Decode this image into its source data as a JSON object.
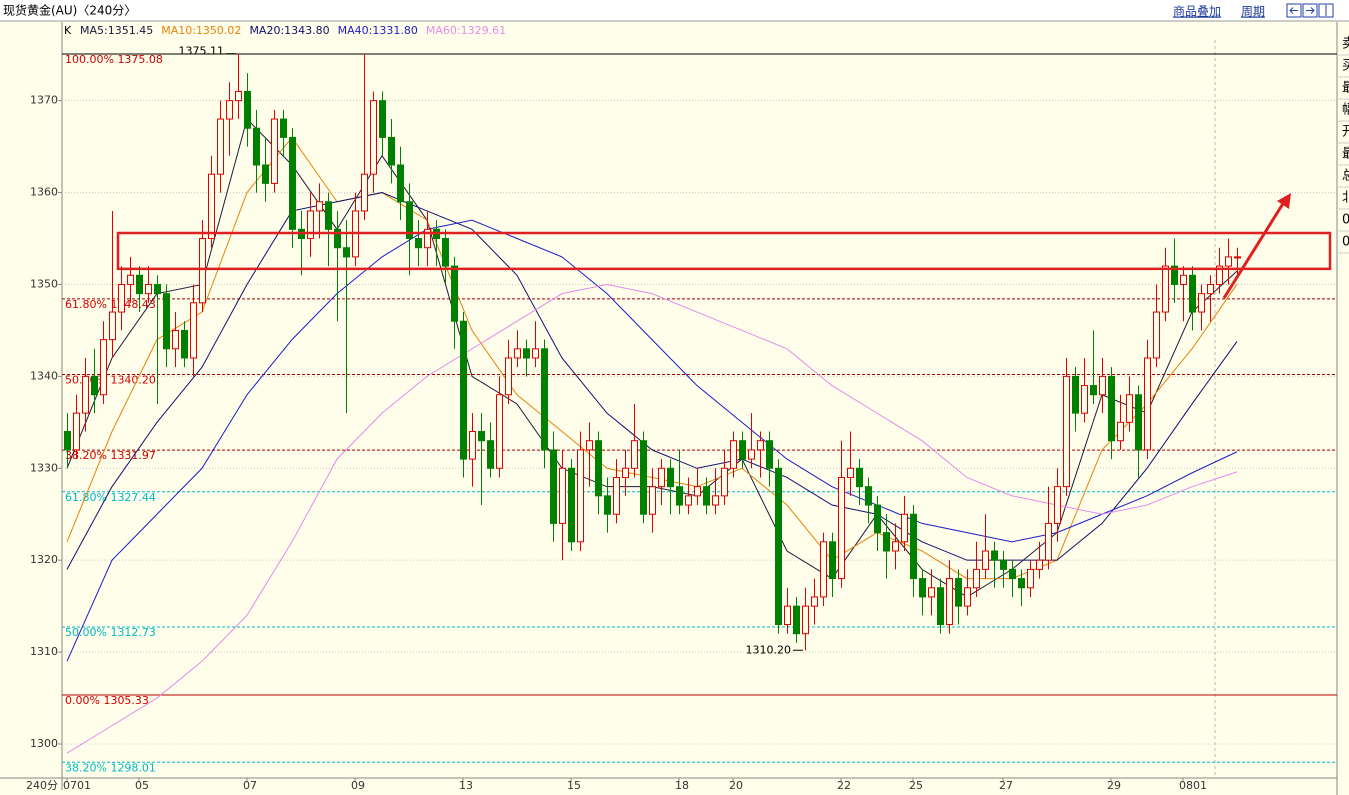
{
  "header": {
    "title": "现货黄金(AU)〈240分〉",
    "overlay_button": "商品叠加",
    "period_button": "周期"
  },
  "side_panel": [
    "卖",
    "买",
    "最",
    "幅",
    "开",
    "最",
    "总",
    "北",
    "0",
    "0"
  ],
  "chart_data": {
    "type": "candlestick",
    "indicator": "K",
    "period_label": "240分",
    "ylim": [
      1296.3,
      1376.6
    ],
    "yticks": [
      1300,
      1310,
      1320,
      1330,
      1340,
      1350,
      1360,
      1370
    ],
    "grid": true,
    "up_color": "#e00000",
    "down_color": "#008000",
    "categories": [
      "0701",
      null,
      null,
      null,
      null,
      null,
      null,
      null,
      "05",
      null,
      null,
      null,
      null,
      null,
      null,
      null,
      null,
      null,
      null,
      null,
      "07",
      null,
      null,
      null,
      null,
      null,
      null,
      null,
      null,
      null,
      null,
      null,
      "09",
      null,
      null,
      null,
      null,
      null,
      null,
      null,
      null,
      null,
      null,
      null,
      "13",
      null,
      null,
      null,
      null,
      null,
      null,
      null,
      null,
      null,
      null,
      null,
      "15",
      null,
      null,
      null,
      null,
      null,
      null,
      null,
      null,
      null,
      null,
      null,
      "18",
      null,
      null,
      null,
      null,
      null,
      "20",
      null,
      null,
      null,
      null,
      null,
      null,
      null,
      null,
      null,
      null,
      null,
      "22",
      null,
      null,
      null,
      null,
      null,
      null,
      null,
      "25",
      null,
      null,
      null,
      null,
      null,
      null,
      null,
      null,
      null,
      "27",
      null,
      null,
      null,
      null,
      null,
      null,
      null,
      null,
      null,
      null,
      null,
      "29",
      null,
      null,
      null,
      null,
      null,
      null,
      null,
      "0801",
      null,
      null,
      null,
      null,
      null,
      null
    ],
    "ohlc": [
      [
        1334,
        1336,
        1330,
        1332
      ],
      [
        1332,
        1338,
        1331,
        1336
      ],
      [
        1336,
        1342,
        1334,
        1340
      ],
      [
        1340,
        1343,
        1336,
        1338
      ],
      [
        1338,
        1346,
        1337,
        1344
      ],
      [
        1344,
        1358,
        1342,
        1347
      ],
      [
        1347,
        1352,
        1345,
        1350
      ],
      [
        1350,
        1353,
        1348,
        1351
      ],
      [
        1351,
        1352,
        1347,
        1349
      ],
      [
        1349,
        1352,
        1348,
        1350
      ],
      [
        1350,
        1351,
        1337,
        1349
      ],
      [
        1349,
        1350,
        1341,
        1343
      ],
      [
        1343,
        1347,
        1341,
        1345
      ],
      [
        1345,
        1346,
        1341,
        1342
      ],
      [
        1342,
        1350,
        1340,
        1348
      ],
      [
        1348,
        1357,
        1347,
        1355
      ],
      [
        1355,
        1364,
        1354,
        1362
      ],
      [
        1362,
        1370,
        1360,
        1368
      ],
      [
        1368,
        1372,
        1364,
        1370
      ],
      [
        1370,
        1375.11,
        1368,
        1371
      ],
      [
        1371,
        1373,
        1365,
        1367
      ],
      [
        1367,
        1369,
        1360,
        1363
      ],
      [
        1363,
        1366,
        1359,
        1361
      ],
      [
        1361,
        1369,
        1360,
        1368
      ],
      [
        1368,
        1369,
        1364,
        1366
      ],
      [
        1366,
        1367,
        1354,
        1356
      ],
      [
        1356,
        1358,
        1351,
        1355
      ],
      [
        1355,
        1360,
        1353,
        1358
      ],
      [
        1358,
        1361,
        1355,
        1359
      ],
      [
        1359,
        1360,
        1352,
        1356
      ],
      [
        1356,
        1358,
        1346,
        1354
      ],
      [
        1354,
        1357,
        1336,
        1353
      ],
      [
        1353,
        1360,
        1352,
        1358
      ],
      [
        1358,
        1375,
        1357,
        1362
      ],
      [
        1362,
        1371,
        1360,
        1370
      ],
      [
        1370,
        1371,
        1364,
        1366
      ],
      [
        1366,
        1368,
        1361,
        1363
      ],
      [
        1363,
        1365,
        1357,
        1359
      ],
      [
        1359,
        1361,
        1351,
        1355
      ],
      [
        1355,
        1357,
        1352,
        1354
      ],
      [
        1354,
        1358,
        1352,
        1356
      ],
      [
        1356,
        1357,
        1352,
        1355
      ],
      [
        1355,
        1356,
        1350,
        1352
      ],
      [
        1352,
        1353,
        1343,
        1346
      ],
      [
        1346,
        1347,
        1329,
        1331
      ],
      [
        1331,
        1336,
        1328,
        1334
      ],
      [
        1334,
        1336,
        1326,
        1333
      ],
      [
        1333,
        1335,
        1329,
        1330
      ],
      [
        1330,
        1340,
        1329,
        1338
      ],
      [
        1338,
        1344,
        1337,
        1342
      ],
      [
        1342,
        1345,
        1341,
        1343
      ],
      [
        1343,
        1344,
        1340,
        1342
      ],
      [
        1342,
        1346,
        1341,
        1343
      ],
      [
        1343,
        1344,
        1330,
        1332
      ],
      [
        1332,
        1334,
        1322,
        1324
      ],
      [
        1324,
        1332,
        1320,
        1330
      ],
      [
        1330,
        1331,
        1321,
        1322
      ],
      [
        1322,
        1334,
        1321,
        1332
      ],
      [
        1332,
        1335,
        1328,
        1333
      ],
      [
        1333,
        1334,
        1325,
        1327
      ],
      [
        1327,
        1329,
        1323,
        1325
      ],
      [
        1325,
        1331,
        1324,
        1329
      ],
      [
        1329,
        1332,
        1327,
        1330
      ],
      [
        1330,
        1337,
        1329,
        1333
      ],
      [
        1333,
        1334,
        1324,
        1325
      ],
      [
        1325,
        1330,
        1323,
        1328
      ],
      [
        1328,
        1331,
        1326,
        1330
      ],
      [
        1330,
        1331,
        1325,
        1328
      ],
      [
        1328,
        1332,
        1325,
        1326
      ],
      [
        1326,
        1329,
        1325,
        1327
      ],
      [
        1327,
        1330,
        1326,
        1328
      ],
      [
        1328,
        1329,
        1325,
        1326
      ],
      [
        1326,
        1330,
        1325,
        1327
      ],
      [
        1327,
        1332,
        1326,
        1330
      ],
      [
        1330,
        1334,
        1329,
        1333
      ],
      [
        1333,
        1334,
        1330,
        1331
      ],
      [
        1331,
        1336,
        1330,
        1332
      ],
      [
        1332,
        1334,
        1329,
        1333
      ],
      [
        1333,
        1334,
        1328,
        1330
      ],
      [
        1330,
        1331,
        1312,
        1313
      ],
      [
        1313,
        1317,
        1312,
        1315
      ],
      [
        1315,
        1316,
        1311,
        1312
      ],
      [
        1312,
        1317,
        1310.2,
        1315
      ],
      [
        1315,
        1318,
        1313,
        1316
      ],
      [
        1316,
        1323,
        1315,
        1322
      ],
      [
        1322,
        1323,
        1316,
        1318
      ],
      [
        1318,
        1333,
        1317,
        1329
      ],
      [
        1329,
        1334,
        1327,
        1330
      ],
      [
        1330,
        1331,
        1326,
        1328
      ],
      [
        1328,
        1329,
        1324,
        1326
      ],
      [
        1326,
        1327,
        1321,
        1323
      ],
      [
        1323,
        1325,
        1318,
        1321
      ],
      [
        1321,
        1324,
        1319,
        1322
      ],
      [
        1322,
        1327,
        1321,
        1325
      ],
      [
        1325,
        1326,
        1316,
        1318
      ],
      [
        1318,
        1319,
        1314,
        1316
      ],
      [
        1316,
        1319,
        1314,
        1317
      ],
      [
        1317,
        1318,
        1312,
        1313
      ],
      [
        1313,
        1320,
        1312,
        1318
      ],
      [
        1318,
        1319,
        1313,
        1315
      ],
      [
        1315,
        1319,
        1314,
        1317
      ],
      [
        1317,
        1322,
        1316,
        1319
      ],
      [
        1319,
        1325,
        1318,
        1321
      ],
      [
        1321,
        1322,
        1317,
        1320
      ],
      [
        1320,
        1321,
        1317,
        1319
      ],
      [
        1319,
        1320,
        1316,
        1318
      ],
      [
        1318,
        1319,
        1315,
        1317
      ],
      [
        1317,
        1320,
        1316,
        1319
      ],
      [
        1319,
        1322,
        1318,
        1320
      ],
      [
        1320,
        1328,
        1319,
        1324
      ],
      [
        1324,
        1330,
        1322,
        1328
      ],
      [
        1328,
        1342,
        1327,
        1340
      ],
      [
        1340,
        1341,
        1334,
        1336
      ],
      [
        1336,
        1342,
        1335,
        1339
      ],
      [
        1339,
        1345,
        1337,
        1338
      ],
      [
        1338,
        1342,
        1336,
        1340
      ],
      [
        1340,
        1341,
        1331,
        1333
      ],
      [
        1333,
        1338,
        1332,
        1335
      ],
      [
        1335,
        1340,
        1334,
        1338
      ],
      [
        1338,
        1339,
        1329,
        1332
      ],
      [
        1332,
        1344,
        1331,
        1342
      ],
      [
        1342,
        1350,
        1341,
        1347
      ],
      [
        1347,
        1354,
        1346,
        1352
      ],
      [
        1352,
        1355,
        1348,
        1350
      ],
      [
        1350,
        1352,
        1346,
        1351
      ],
      [
        1351,
        1352,
        1345,
        1347
      ],
      [
        1347,
        1350,
        1345,
        1349
      ],
      [
        1349,
        1351,
        1346,
        1350
      ],
      [
        1350,
        1354,
        1349,
        1352
      ],
      [
        1352,
        1355,
        1350,
        1353
      ],
      [
        1353,
        1354,
        1351,
        1353
      ]
    ],
    "series": [
      {
        "name": "MA5:1351.45",
        "color": "#1a1a3a",
        "x": [
          0,
          5,
          10,
          15,
          20,
          25,
          30,
          35,
          40,
          45,
          50,
          55,
          60,
          65,
          70,
          75,
          80,
          85,
          90,
          95,
          100,
          105,
          110,
          115,
          120,
          125,
          130
        ],
        "values": [
          1330,
          1342,
          1349,
          1350,
          1368,
          1363,
          1356,
          1364,
          1357,
          1340,
          1337,
          1330,
          1328,
          1328,
          1327,
          1331,
          1321,
          1318,
          1325,
          1319,
          1316,
          1319,
          1323,
          1338,
          1336,
          1347,
          1351.45
        ]
      },
      {
        "name": "MA10:1350.02",
        "color": "#e8820c",
        "x": [
          0,
          5,
          10,
          15,
          20,
          25,
          30,
          35,
          40,
          45,
          50,
          55,
          60,
          65,
          70,
          75,
          80,
          85,
          90,
          95,
          100,
          105,
          110,
          115,
          120,
          125,
          130
        ],
        "values": [
          1322,
          1334,
          1344,
          1347,
          1360,
          1366,
          1359,
          1360,
          1357,
          1345,
          1338,
          1334,
          1330,
          1329,
          1328,
          1330,
          1326,
          1320,
          1323,
          1321,
          1318,
          1318,
          1320,
          1332,
          1337,
          1343,
          1350.02
        ]
      },
      {
        "name": "MA20:1343.80",
        "color": "#10106e",
        "x": [
          0,
          5,
          10,
          15,
          20,
          25,
          30,
          35,
          40,
          45,
          50,
          55,
          60,
          65,
          70,
          75,
          80,
          85,
          90,
          95,
          100,
          105,
          110,
          115,
          120,
          125,
          130
        ],
        "values": [
          1319,
          1328,
          1335,
          1341,
          1350,
          1358,
          1359,
          1360,
          1358,
          1356,
          1351,
          1342,
          1336,
          1332,
          1330,
          1331,
          1329,
          1326,
          1325,
          1322,
          1320,
          1320,
          1320,
          1324,
          1330,
          1337,
          1343.8
        ]
      },
      {
        "name": "MA40:1331.80",
        "color": "#1c1cc8",
        "x": [
          0,
          5,
          10,
          15,
          20,
          25,
          30,
          35,
          40,
          45,
          50,
          55,
          60,
          65,
          70,
          75,
          80,
          85,
          90,
          95,
          100,
          105,
          110,
          115,
          120,
          125,
          130
        ],
        "values": [
          1309,
          1320,
          1325,
          1330,
          1338,
          1344,
          1349,
          1353,
          1356,
          1357,
          1355,
          1353,
          1349,
          1344,
          1339,
          1335,
          1331,
          1328,
          1326,
          1324,
          1323,
          1322,
          1323,
          1325,
          1327,
          1329.5,
          1331.8
        ]
      },
      {
        "name": "MA60:1329.61",
        "color": "#e58ce8",
        "x": [
          0,
          5,
          10,
          15,
          20,
          25,
          30,
          35,
          40,
          45,
          50,
          55,
          60,
          65,
          70,
          75,
          80,
          85,
          90,
          95,
          100,
          105,
          110,
          115,
          120,
          125,
          130
        ],
        "values": [
          1299,
          1302,
          1305,
          1309,
          1314,
          1322,
          1331,
          1336,
          1340,
          1343,
          1346,
          1349,
          1350,
          1349,
          1347,
          1345,
          1343,
          1339,
          1336,
          1333,
          1329,
          1327,
          1326,
          1325,
          1326,
          1328,
          1329.61
        ]
      }
    ],
    "fib_lines": [
      {
        "label": "100.00% 1375.08",
        "value": 1375.08,
        "color": "#d00000",
        "line_color": "#000000",
        "dashed": false
      },
      {
        "label": "61.80% 1348.43",
        "value": 1348.43,
        "color": "#d00000",
        "line_color": "#a00000",
        "dashed": true
      },
      {
        "label": "50.00% 1340.20",
        "value": 1340.2,
        "color": "#d00000",
        "line_color": "#a00000",
        "dashed": true
      },
      {
        "label": "38.20% 1331.97",
        "value": 1331.97,
        "color": "#d00000",
        "line_color": "#a00000",
        "dashed": true
      },
      {
        "label": "61.80% 1327.44",
        "value": 1327.44,
        "color": "#00b8c8",
        "line_color": "#00b8c8",
        "dashed": true
      },
      {
        "label": "50.00% 1312.73",
        "value": 1312.73,
        "color": "#00b8c8",
        "line_color": "#00b8c8",
        "dashed": true
      },
      {
        "label": "0.00% 1305.33",
        "value": 1305.33,
        "color": "#d00000",
        "line_color": "#c00000",
        "dashed": false
      },
      {
        "label": "38.20% 1298.01",
        "value": 1298.01,
        "color": "#00b8c8",
        "line_color": "#00b8c8",
        "dashed": true
      }
    ],
    "annotations": [
      {
        "label": "1375.11",
        "value": 1375.11,
        "x": 19
      },
      {
        "label": "1310.20",
        "value": 1310.2,
        "x": 82
      }
    ],
    "zone": [
      1351.7,
      1355.6
    ],
    "zone_color": "#e02020"
  }
}
